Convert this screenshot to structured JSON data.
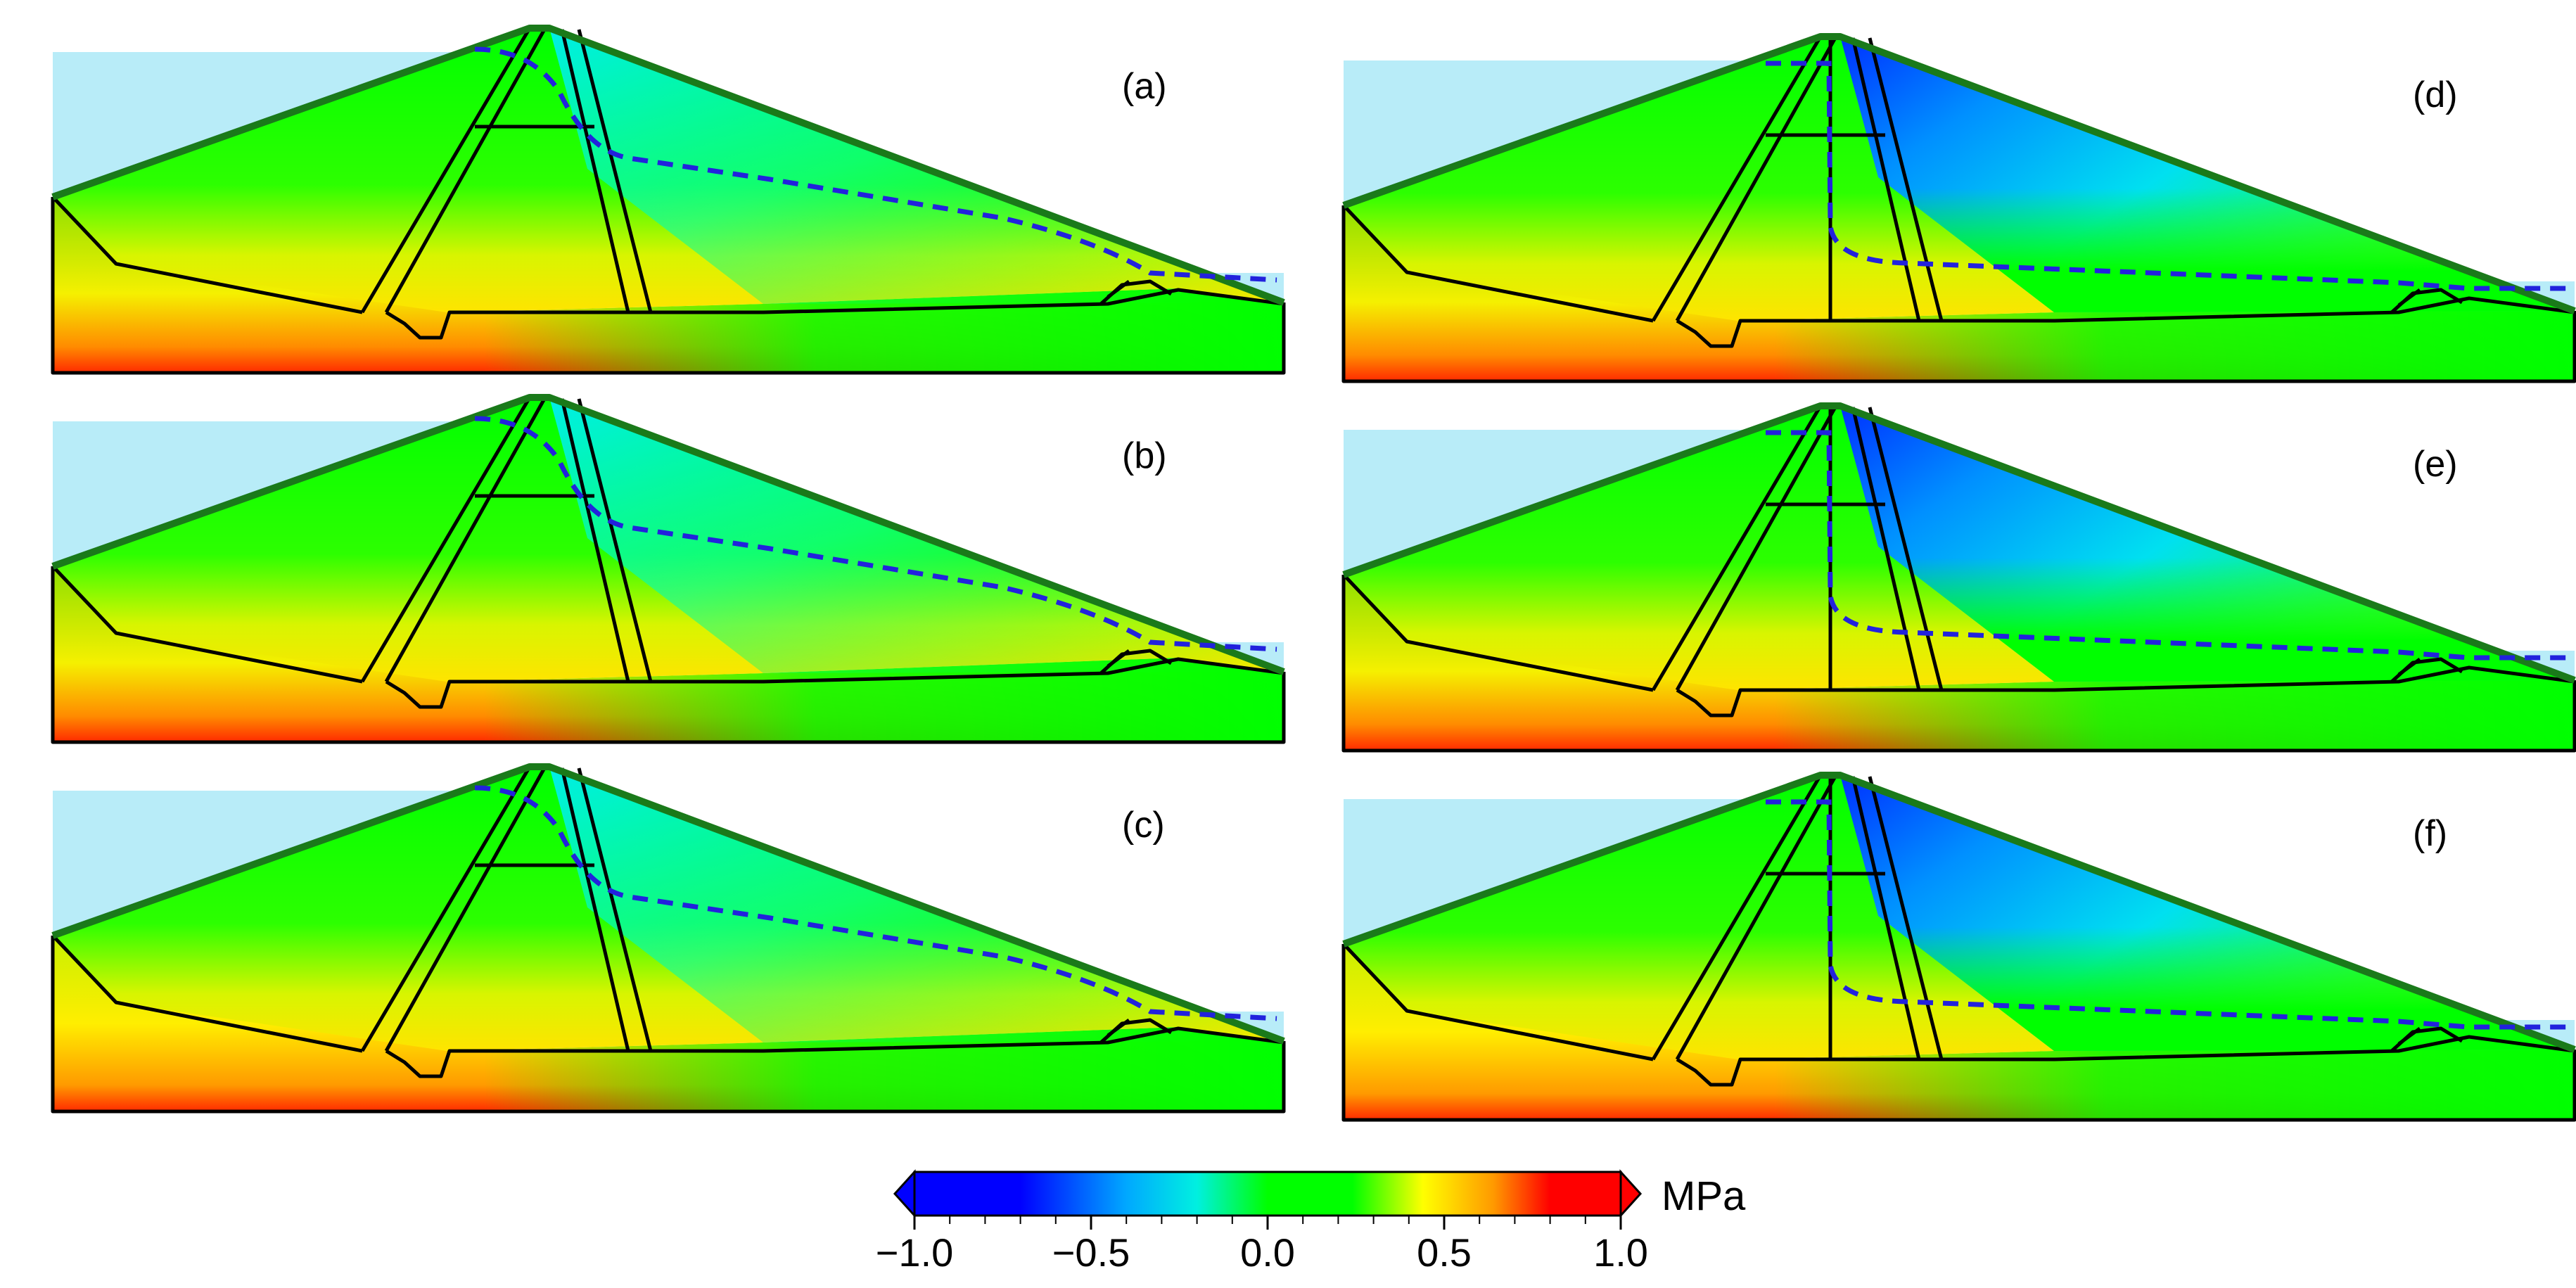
{
  "panels": [
    {
      "label": "(a)",
      "variant": "sloped-core"
    },
    {
      "label": "(b)",
      "variant": "sloped-core"
    },
    {
      "label": "(c)",
      "variant": "sloped-core"
    },
    {
      "label": "(d)",
      "variant": "vertical-wall"
    },
    {
      "label": "(e)",
      "variant": "vertical-wall"
    },
    {
      "label": "(f)",
      "variant": "vertical-wall"
    }
  ],
  "colorbar": {
    "unit": "MPa",
    "range": [
      -1.0,
      1.0
    ],
    "ticks": [
      "−1.0",
      "−0.5",
      "0.0",
      "0.5",
      "1.0"
    ],
    "colors": [
      "#0000ff",
      "#00e8e8",
      "#00ff00",
      "#ffff00",
      "#ff0000"
    ]
  },
  "colors": {
    "water": "#b8ecf8",
    "outline": "#1a7a1a",
    "seepage_line": "#2222dd",
    "structure": "#000000"
  }
}
